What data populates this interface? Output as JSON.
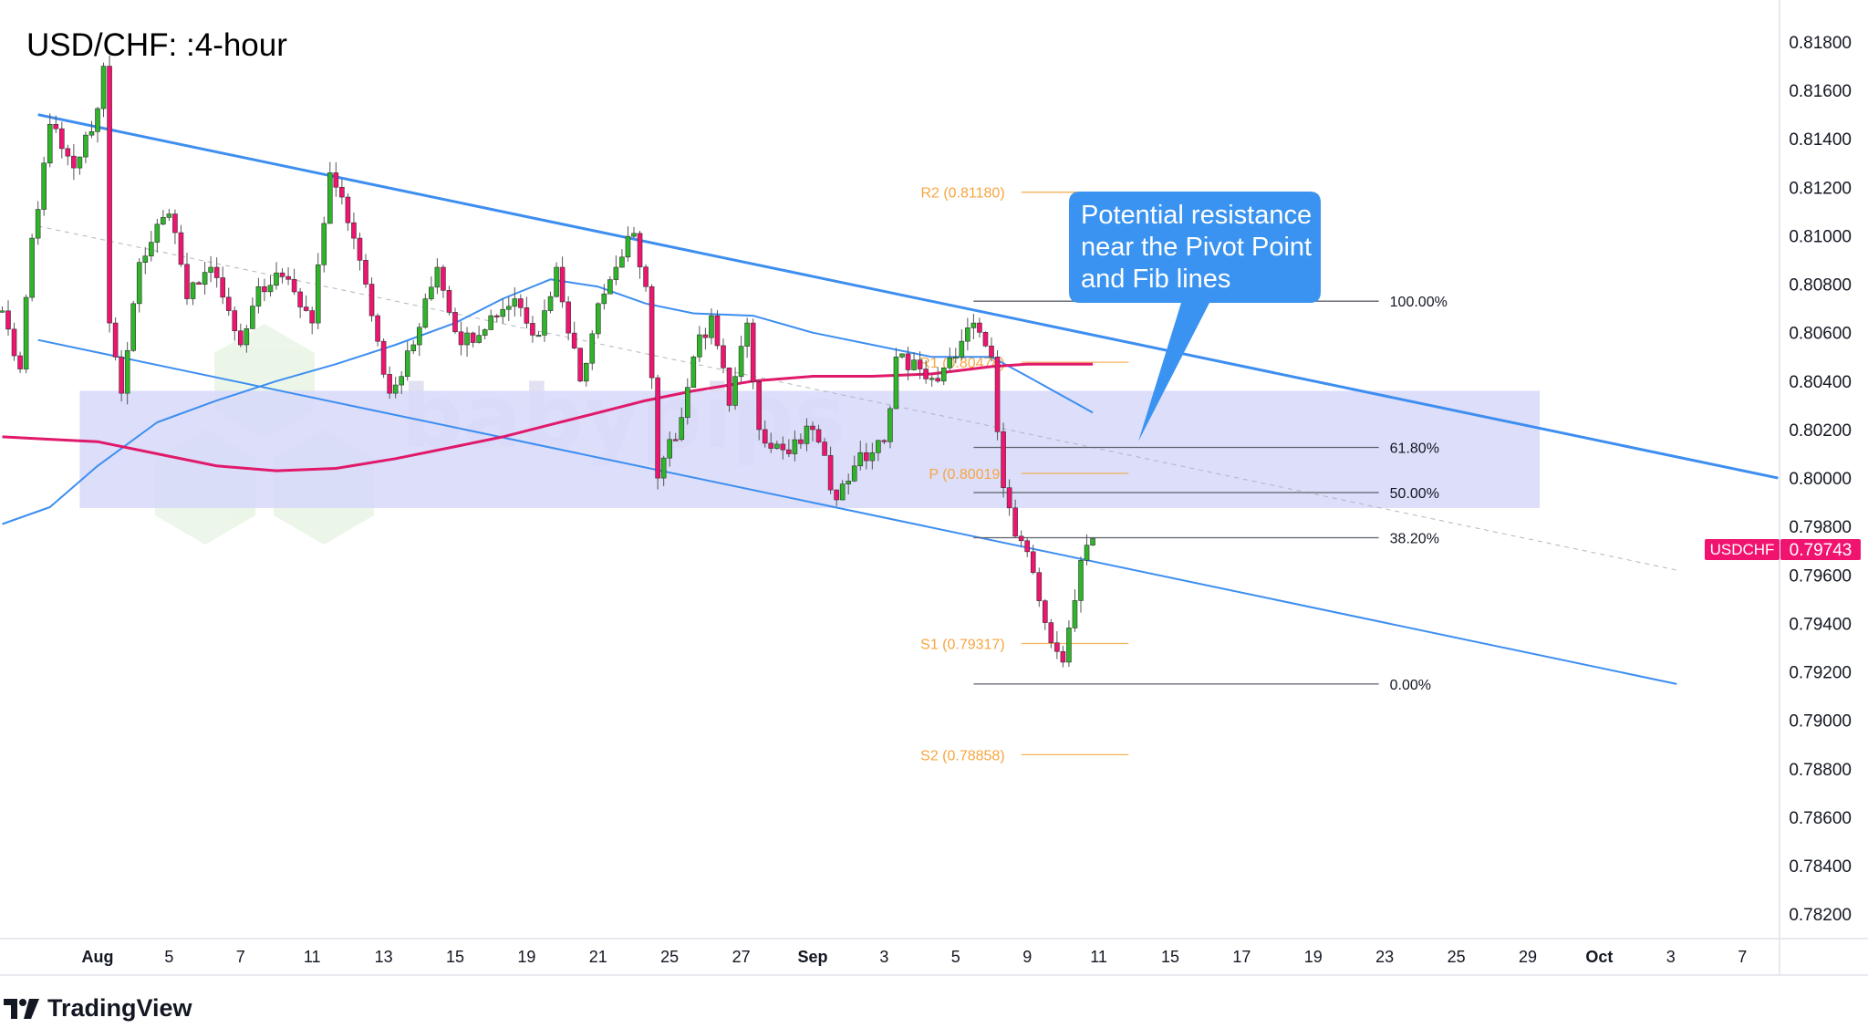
{
  "chart_data": {
    "type": "candlestick",
    "title": "USD/CHF: :4-hour",
    "symbol": "USDCHF",
    "last_price": "0.79743",
    "ylim": [
      0.781,
      0.819
    ],
    "y_ticks": [
      "0.81800",
      "0.81600",
      "0.81400",
      "0.81200",
      "0.81000",
      "0.80800",
      "0.80600",
      "0.80400",
      "0.80200",
      "0.80000",
      "0.79800",
      "0.79600",
      "0.79400",
      "0.79200",
      "0.79000",
      "0.78800",
      "0.78600",
      "0.78400",
      "0.78200"
    ],
    "x_ticks": [
      {
        "label": "Aug",
        "bold": true
      },
      {
        "label": "5"
      },
      {
        "label": "7"
      },
      {
        "label": "11"
      },
      {
        "label": "13"
      },
      {
        "label": "15"
      },
      {
        "label": "19"
      },
      {
        "label": "21"
      },
      {
        "label": "25"
      },
      {
        "label": "27"
      },
      {
        "label": "Sep",
        "bold": true
      },
      {
        "label": "3"
      },
      {
        "label": "5"
      },
      {
        "label": "9"
      },
      {
        "label": "11"
      },
      {
        "label": "15"
      },
      {
        "label": "17"
      },
      {
        "label": "19"
      },
      {
        "label": "23"
      },
      {
        "label": "25"
      },
      {
        "label": "29"
      },
      {
        "label": "Oct",
        "bold": true
      },
      {
        "label": "3"
      },
      {
        "label": "7"
      }
    ],
    "grid": false,
    "colors": {
      "up": "#2fb52a",
      "down": "#f0136f",
      "ma_fast": "#3d8ef0",
      "ma_slow": "#e0196b",
      "channel": "#3d8ef0",
      "pivot": "#f7a540",
      "fib": "#5d606b",
      "zone": "#d8dafa",
      "callout": "#3a93f0",
      "price_tag": "#f0136f"
    },
    "price_path": [
      {
        "t": "2024-07-29T08",
        "close": 0.8069
      },
      {
        "t": "2024-07-29T20",
        "close": 0.8045
      },
      {
        "t": "2024-07-30T04",
        "close": 0.8099
      },
      {
        "t": "2024-07-30T16",
        "close": 0.8146
      },
      {
        "t": "2024-07-31T08",
        "close": 0.8128
      },
      {
        "t": "2024-07-31T20",
        "close": 0.8143
      },
      {
        "t": "2024-08-01T04",
        "close": 0.817
      },
      {
        "t": "2024-08-01T08",
        "close": 0.8064
      },
      {
        "t": "2024-08-01T16",
        "close": 0.8035
      },
      {
        "t": "2024-08-02T04",
        "close": 0.8089
      },
      {
        "t": "2024-08-05T00",
        "close": 0.8109
      },
      {
        "t": "2024-08-05T12",
        "close": 0.8074
      },
      {
        "t": "2024-08-06T04",
        "close": 0.8087
      },
      {
        "t": "2024-08-07T00",
        "close": 0.8055
      },
      {
        "t": "2024-08-07T12",
        "close": 0.8079
      },
      {
        "t": "2024-08-08T08",
        "close": 0.8082
      },
      {
        "t": "2024-08-09T00",
        "close": 0.8064
      },
      {
        "t": "2024-08-09T12",
        "close": 0.8126
      },
      {
        "t": "2024-08-12T04",
        "close": 0.8099
      },
      {
        "t": "2024-08-12T16",
        "close": 0.8067
      },
      {
        "t": "2024-08-13T04",
        "close": 0.8035
      },
      {
        "t": "2024-08-13T20",
        "close": 0.8055
      },
      {
        "t": "2024-08-14T12",
        "close": 0.8087
      },
      {
        "t": "2024-08-15T04",
        "close": 0.8055
      },
      {
        "t": "2024-08-16T00",
        "close": 0.8067
      },
      {
        "t": "2024-08-16T16",
        "close": 0.8074
      },
      {
        "t": "2024-08-19T08",
        "close": 0.8059
      },
      {
        "t": "2024-08-19T20",
        "close": 0.8087
      },
      {
        "t": "2024-08-20T12",
        "close": 0.804
      },
      {
        "t": "2024-08-21T00",
        "close": 0.8072
      },
      {
        "t": "2024-08-21T12",
        "close": 0.8087
      },
      {
        "t": "2024-08-22T00",
        "close": 0.8101
      },
      {
        "t": "2024-08-22T08",
        "close": 0.8079
      },
      {
        "t": "2024-08-22T16",
        "close": 0.8
      },
      {
        "t": "2024-08-23T08",
        "close": 0.8025
      },
      {
        "t": "2024-08-23T16",
        "close": 0.805
      },
      {
        "t": "2024-08-26T04",
        "close": 0.8067
      },
      {
        "t": "2024-08-26T16",
        "close": 0.803
      },
      {
        "t": "2024-08-27T04",
        "close": 0.8064
      },
      {
        "t": "2024-08-27T12",
        "close": 0.802
      },
      {
        "t": "2024-08-28T08",
        "close": 0.801
      },
      {
        "t": "2024-08-29T00",
        "close": 0.802
      },
      {
        "t": "2024-08-29T16",
        "close": 0.7991
      },
      {
        "t": "2024-08-30T04",
        "close": 0.8005
      },
      {
        "t": "2024-09-02T00",
        "close": 0.8015
      },
      {
        "t": "2024-09-02T08",
        "close": 0.805
      },
      {
        "t": "2024-09-03T00",
        "close": 0.8045
      },
      {
        "t": "2024-09-03T12",
        "close": 0.804
      },
      {
        "t": "2024-09-04T00",
        "close": 0.805
      },
      {
        "t": "2024-09-04T12",
        "close": 0.8064
      },
      {
        "t": "2024-09-05T00",
        "close": 0.805
      },
      {
        "t": "2024-09-05T08",
        "close": 0.7996
      },
      {
        "t": "2024-09-05T16",
        "close": 0.7976
      },
      {
        "t": "2024-09-06T04",
        "close": 0.7961
      },
      {
        "t": "2024-09-06T16",
        "close": 0.7932
      },
      {
        "t": "2024-09-09T00",
        "close": 0.7924
      },
      {
        "t": "2024-09-09T12",
        "close": 0.7966
      },
      {
        "t": "2024-09-09T20",
        "close": 0.7975
      }
    ],
    "moving_averages": [
      {
        "color": "#3d8ef0",
        "points": [
          {
            "t": "2024-07-29T08",
            "v": 0.7981
          },
          {
            "t": "2024-07-30T16",
            "v": 0.7988
          },
          {
            "t": "2024-08-01T00",
            "v": 0.8005
          },
          {
            "t": "2024-08-02T16",
            "v": 0.8023
          },
          {
            "t": "2024-08-06T08",
            "v": 0.8032
          },
          {
            "t": "2024-08-08T00",
            "v": 0.804
          },
          {
            "t": "2024-08-09T16",
            "v": 0.8047
          },
          {
            "t": "2024-08-13T08",
            "v": 0.8055
          },
          {
            "t": "2024-08-15T00",
            "v": 0.8064
          },
          {
            "t": "2024-08-16T08",
            "v": 0.8074
          },
          {
            "t": "2024-08-19T16",
            "v": 0.8082
          },
          {
            "t": "2024-08-21T00",
            "v": 0.8079
          },
          {
            "t": "2024-08-22T08",
            "v": 0.8072
          },
          {
            "t": "2024-08-23T16",
            "v": 0.8068
          },
          {
            "t": "2024-08-27T08",
            "v": 0.8067
          },
          {
            "t": "2024-08-29T00",
            "v": 0.806
          },
          {
            "t": "2024-08-30T16",
            "v": 0.8055
          },
          {
            "t": "2024-09-03T08",
            "v": 0.805
          },
          {
            "t": "2024-09-05T00",
            "v": 0.805
          },
          {
            "t": "2024-09-06T00",
            "v": 0.8042
          },
          {
            "t": "2024-09-09T20",
            "v": 0.8027
          }
        ]
      },
      {
        "color": "#e0196b",
        "points": [
          {
            "t": "2024-07-29T08",
            "v": 0.8017
          },
          {
            "t": "2024-07-30T16",
            "v": 0.8016
          },
          {
            "t": "2024-08-01T00",
            "v": 0.8015
          },
          {
            "t": "2024-08-02T16",
            "v": 0.801
          },
          {
            "t": "2024-08-06T08",
            "v": 0.8005
          },
          {
            "t": "2024-08-08T00",
            "v": 0.8003
          },
          {
            "t": "2024-08-09T16",
            "v": 0.8004
          },
          {
            "t": "2024-08-13T08",
            "v": 0.8008
          },
          {
            "t": "2024-08-15T00",
            "v": 0.8013
          },
          {
            "t": "2024-08-16T08",
            "v": 0.8017
          },
          {
            "t": "2024-08-19T16",
            "v": 0.8022
          },
          {
            "t": "2024-08-21T00",
            "v": 0.8027
          },
          {
            "t": "2024-08-22T08",
            "v": 0.8032
          },
          {
            "t": "2024-08-23T16",
            "v": 0.8036
          },
          {
            "t": "2024-08-27T08",
            "v": 0.804
          },
          {
            "t": "2024-08-29T00",
            "v": 0.8042
          },
          {
            "t": "2024-08-30T16",
            "v": 0.8042
          },
          {
            "t": "2024-09-03T08",
            "v": 0.8043
          },
          {
            "t": "2024-09-05T00",
            "v": 0.8046
          },
          {
            "t": "2024-09-06T00",
            "v": 0.8047
          },
          {
            "t": "2024-09-09T20",
            "v": 0.8047
          }
        ]
      }
    ],
    "channel": {
      "upper": [
        {
          "t": "2024-07-30T08",
          "v": 0.815
        },
        {
          "t": "2024-10-07T00",
          "v": 0.8
        }
      ],
      "lower": [
        {
          "t": "2024-07-30T08",
          "v": 0.8057
        },
        {
          "t": "2024-10-02T04",
          "v": 0.7915
        }
      ],
      "middle": [
        {
          "t": "2024-07-30T08",
          "v": 0.8104
        },
        {
          "t": "2024-10-02T04",
          "v": 0.7962
        }
      ]
    },
    "zone": {
      "from": "2024-07-31T12",
      "to": "2024-09-26T08",
      "top": 0.8036,
      "bottom": 0.79876
    },
    "pivots": [
      {
        "label": "R2 (0.81180)",
        "value": 0.8118
      },
      {
        "label": "R1 (0.80478)",
        "value": 0.80478
      },
      {
        "label": "P (0.80019)",
        "value": 0.80019
      },
      {
        "label": "S1 (0.79317)",
        "value": 0.79317
      },
      {
        "label": "S2 (0.78858)",
        "value": 0.78858
      }
    ],
    "pivot_span": {
      "from": "2024-09-05T20",
      "to": "2024-09-10T20"
    },
    "fib": {
      "high": 0.8073,
      "low": 0.7915,
      "from": "2024-09-04T12",
      "to": "2024-09-19T20",
      "levels": [
        {
          "ratio": 1.0,
          "label": "100.00%"
        },
        {
          "ratio": 0.618,
          "label": "61.80%"
        },
        {
          "ratio": 0.5,
          "label": "50.00%"
        },
        {
          "ratio": 0.382,
          "label": "38.20%"
        },
        {
          "ratio": 0.0,
          "label": "0.00%"
        }
      ]
    },
    "annotation": {
      "lines": [
        "Potential resistance",
        "near the Pivot Point",
        "and Fib lines"
      ]
    }
  },
  "watermark": {
    "text": "babypips"
  },
  "footer": {
    "brand": "TradingView"
  }
}
